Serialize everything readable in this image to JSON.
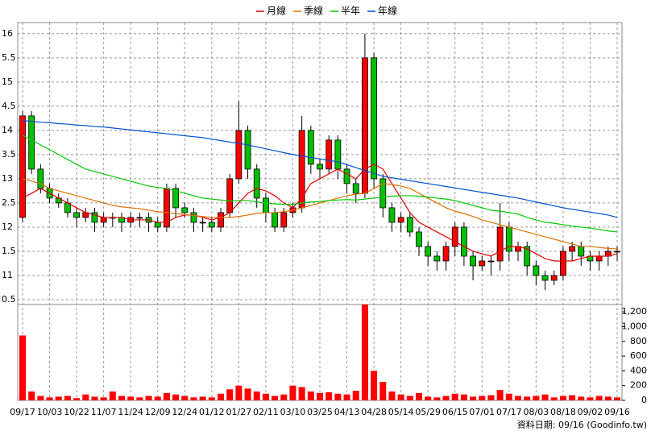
{
  "chart_data": {
    "type": "candlestick",
    "categories": [
      "09/17",
      null,
      null,
      "10/03",
      null,
      null,
      "10/22",
      null,
      null,
      "11/07",
      null,
      null,
      "11/24",
      null,
      null,
      "12/09",
      null,
      null,
      "12/24",
      null,
      null,
      "01/12",
      null,
      null,
      "01/27",
      null,
      null,
      "02/11",
      null,
      null,
      "03/10",
      null,
      null,
      "03/25",
      null,
      null,
      "04/13",
      null,
      null,
      "04/28",
      null,
      null,
      "05/14",
      null,
      null,
      "05/29",
      null,
      null,
      "06/15",
      null,
      null,
      "07/01",
      null,
      null,
      "07/17",
      null,
      null,
      "08/03",
      null,
      null,
      "08/18",
      null,
      null,
      "09/02",
      null,
      null,
      "09/16"
    ],
    "candles": {
      "up_color": "#ff0000",
      "down_color": "#00c000",
      "open": [
        12.2,
        14.3,
        13.2,
        12.8,
        12.6,
        12.5,
        12.3,
        12.2,
        12.3,
        12.1,
        12.2,
        12.2,
        12.1,
        12.2,
        12.2,
        12.1,
        12.0,
        12.8,
        12.4,
        12.3,
        12.1,
        12.1,
        12.0,
        12.3,
        13.0,
        14.0,
        13.2,
        12.6,
        12.3,
        12.0,
        12.3,
        12.4,
        14.0,
        13.3,
        13.2,
        13.8,
        13.2,
        12.9,
        12.7,
        15.5,
        13.0,
        12.4,
        12.1,
        12.2,
        11.9,
        11.6,
        11.4,
        11.3,
        11.6,
        12.0,
        11.4,
        11.2,
        11.3,
        11.3,
        12.0,
        11.5,
        11.6,
        11.2,
        11.0,
        10.9,
        11.0,
        11.5,
        11.6,
        11.4,
        11.3,
        11.4,
        11.5
      ],
      "high": [
        14.4,
        14.4,
        13.3,
        12.9,
        12.7,
        12.6,
        12.4,
        12.4,
        12.4,
        12.3,
        12.3,
        12.3,
        12.3,
        12.3,
        12.3,
        12.2,
        12.9,
        12.9,
        12.5,
        12.4,
        12.2,
        12.2,
        12.4,
        13.1,
        14.6,
        14.1,
        13.3,
        12.7,
        12.4,
        12.4,
        12.5,
        14.3,
        14.1,
        13.4,
        13.9,
        13.9,
        13.3,
        13.0,
        16.0,
        15.6,
        13.1,
        12.5,
        12.3,
        12.3,
        12.0,
        11.7,
        11.5,
        11.7,
        12.1,
        12.1,
        11.5,
        11.4,
        11.4,
        12.5,
        12.1,
        11.7,
        11.7,
        11.3,
        11.1,
        11.1,
        11.6,
        11.7,
        11.7,
        11.5,
        11.5,
        11.6,
        11.6
      ],
      "low": [
        12.1,
        13.1,
        12.7,
        12.5,
        12.4,
        12.2,
        12.0,
        12.1,
        11.9,
        12.0,
        12.0,
        11.9,
        12.0,
        12.0,
        11.9,
        11.9,
        11.9,
        12.2,
        12.2,
        11.9,
        11.9,
        11.9,
        11.9,
        12.2,
        12.9,
        13.0,
        12.4,
        12.1,
        11.9,
        11.9,
        12.2,
        12.3,
        13.1,
        13.0,
        13.1,
        13.0,
        12.7,
        12.5,
        12.6,
        12.8,
        12.2,
        11.9,
        11.9,
        11.8,
        11.4,
        11.2,
        11.1,
        11.1,
        11.4,
        11.2,
        10.9,
        11.1,
        11.0,
        11.1,
        11.3,
        11.3,
        11.0,
        10.8,
        10.7,
        10.8,
        10.9,
        11.3,
        11.2,
        11.1,
        11.1,
        11.2,
        11.3
      ],
      "close": [
        14.3,
        13.2,
        12.8,
        12.6,
        12.5,
        12.3,
        12.2,
        12.3,
        12.1,
        12.2,
        12.2,
        12.1,
        12.2,
        12.2,
        12.1,
        12.0,
        12.8,
        12.4,
        12.3,
        12.1,
        12.1,
        12.0,
        12.3,
        13.0,
        14.0,
        13.2,
        12.6,
        12.3,
        12.0,
        12.3,
        12.4,
        14.0,
        13.3,
        13.2,
        13.8,
        13.2,
        12.9,
        12.7,
        15.5,
        13.0,
        12.4,
        12.1,
        12.2,
        11.9,
        11.6,
        11.4,
        11.3,
        11.6,
        12.0,
        11.4,
        11.2,
        11.3,
        11.3,
        12.0,
        11.5,
        11.6,
        11.2,
        11.0,
        10.9,
        11.0,
        11.5,
        11.6,
        11.4,
        11.3,
        11.4,
        11.5,
        11.5
      ]
    },
    "series": [
      {
        "name": "月線",
        "color": "#e00000",
        "values": [
          12.6,
          12.7,
          12.8,
          12.7,
          12.6,
          12.5,
          12.4,
          12.3,
          12.25,
          12.2,
          12.2,
          12.2,
          12.15,
          12.15,
          12.15,
          12.1,
          12.1,
          12.2,
          12.25,
          12.25,
          12.2,
          12.15,
          12.2,
          12.3,
          12.5,
          12.7,
          12.8,
          12.75,
          12.65,
          12.5,
          12.4,
          12.6,
          12.9,
          13.0,
          13.1,
          13.2,
          13.1,
          13.0,
          13.2,
          13.3,
          13.2,
          12.9,
          12.6,
          12.3,
          12.1,
          12.0,
          11.9,
          11.8,
          11.7,
          11.6,
          11.5,
          11.45,
          11.4,
          11.5,
          11.6,
          11.6,
          11.55,
          11.45,
          11.35,
          11.3,
          11.3,
          11.3,
          11.35,
          11.4,
          11.4,
          11.4,
          11.45
        ]
      },
      {
        "name": "季線",
        "color": "#e07000",
        "values": [
          13.0,
          12.95,
          12.9,
          12.8,
          12.75,
          12.7,
          12.65,
          12.6,
          12.55,
          12.5,
          12.45,
          12.42,
          12.4,
          12.38,
          12.35,
          12.32,
          12.3,
          12.28,
          12.26,
          12.24,
          12.22,
          12.2,
          12.2,
          12.2,
          12.22,
          12.25,
          12.28,
          12.3,
          12.3,
          12.32,
          12.35,
          12.4,
          12.45,
          12.5,
          12.55,
          12.6,
          12.65,
          12.68,
          12.7,
          12.8,
          12.9,
          12.88,
          12.85,
          12.8,
          12.7,
          12.6,
          12.5,
          12.4,
          12.33,
          12.28,
          12.22,
          12.15,
          12.1,
          12.05,
          12.0,
          11.95,
          11.9,
          11.85,
          11.8,
          11.75,
          11.7,
          11.65,
          11.6,
          11.6,
          11.58,
          11.56,
          11.55
        ]
      },
      {
        "name": "半年",
        "color": "#00c800",
        "values": [
          13.9,
          13.8,
          13.7,
          13.6,
          13.5,
          13.4,
          13.3,
          13.2,
          13.15,
          13.1,
          13.05,
          13.0,
          12.95,
          12.9,
          12.85,
          12.82,
          12.8,
          12.75,
          12.7,
          12.65,
          12.6,
          12.58,
          12.56,
          12.54,
          12.55,
          12.55,
          12.52,
          12.5,
          12.48,
          12.47,
          12.47,
          12.5,
          12.52,
          12.53,
          12.55,
          12.56,
          12.57,
          12.56,
          12.58,
          12.6,
          12.62,
          12.64,
          12.65,
          12.65,
          12.64,
          12.62,
          12.6,
          12.58,
          12.55,
          12.5,
          12.45,
          12.4,
          12.35,
          12.33,
          12.3,
          12.27,
          12.2,
          12.15,
          12.1,
          12.08,
          12.05,
          12.02,
          12.0,
          11.98,
          11.95,
          11.92,
          11.9
        ]
      },
      {
        "name": "年線",
        "color": "#0050d0",
        "values": [
          14.2,
          14.19,
          14.17,
          14.16,
          14.14,
          14.13,
          14.11,
          14.1,
          14.08,
          14.07,
          14.05,
          14.03,
          14.01,
          13.99,
          13.97,
          13.95,
          13.93,
          13.91,
          13.89,
          13.87,
          13.85,
          13.82,
          13.79,
          13.76,
          13.73,
          13.7,
          13.66,
          13.62,
          13.58,
          13.54,
          13.5,
          13.47,
          13.44,
          13.41,
          13.38,
          13.35,
          13.29,
          13.23,
          13.17,
          13.11,
          13.05,
          13.02,
          12.99,
          12.96,
          12.93,
          12.9,
          12.87,
          12.84,
          12.81,
          12.78,
          12.75,
          12.72,
          12.69,
          12.66,
          12.63,
          12.6,
          12.56,
          12.52,
          12.48,
          12.44,
          12.4,
          12.37,
          12.34,
          12.31,
          12.28,
          12.25,
          12.2
        ]
      }
    ],
    "ylim": [
      10.4,
      16.23
    ],
    "yticks": [
      16,
      {
        "value": 15.5,
        "label": "5.5"
      },
      15,
      {
        "value": 14.5,
        "label": "4.5"
      },
      14,
      {
        "value": 13.5,
        "label": "3.5"
      },
      13,
      {
        "value": 12.5,
        "label": "2.5"
      },
      12,
      {
        "value": 11.5,
        "label": "1.5"
      },
      11,
      {
        "value": 10.5,
        "label": "0.5"
      }
    ],
    "grid": true,
    "volume": {
      "color": "#ff0000",
      "values": [
        880,
        120,
        60,
        40,
        50,
        60,
        30,
        80,
        50,
        40,
        120,
        60,
        50,
        40,
        60,
        50,
        100,
        80,
        60,
        40,
        50,
        40,
        90,
        150,
        200,
        160,
        120,
        90,
        60,
        80,
        200,
        180,
        120,
        100,
        110,
        90,
        80,
        130,
        1300,
        400,
        250,
        120,
        80,
        60,
        100,
        50,
        40,
        60,
        90,
        80,
        50,
        60,
        70,
        140,
        90,
        60,
        50,
        60,
        80,
        40,
        60,
        70,
        50,
        40,
        60,
        50,
        40
      ],
      "ylim": [
        0,
        1300
      ],
      "yticks": [
        {
          "value": 1200,
          "label": "1,200"
        },
        {
          "value": 1000,
          "label": "1,000"
        },
        800,
        600,
        400,
        200,
        0
      ]
    },
    "footer": "資料日期: 09/16 (Goodinfo.tw)"
  }
}
